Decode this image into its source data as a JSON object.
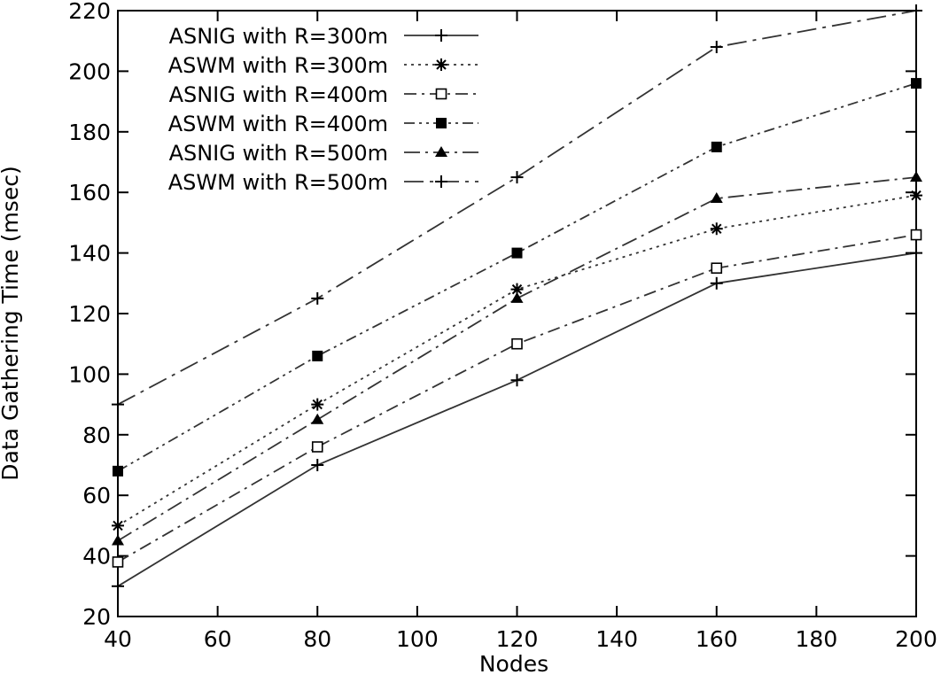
{
  "chart_data": {
    "type": "line",
    "title": "",
    "xlabel": "Nodes",
    "ylabel": "Data Gathering Time (msec)",
    "x": [
      40,
      80,
      120,
      160,
      200
    ],
    "xlim": [
      40,
      200
    ],
    "ylim": [
      20,
      220
    ],
    "xticks": [
      40,
      60,
      80,
      100,
      120,
      140,
      160,
      180,
      200
    ],
    "yticks": [
      20,
      40,
      60,
      80,
      100,
      120,
      140,
      160,
      180,
      200,
      220
    ],
    "grid": false,
    "legend_position": "top-left",
    "series": [
      {
        "name": "ASNIG with R=300m",
        "values": [
          30,
          70,
          98,
          130,
          140
        ],
        "line_style": "solid",
        "marker": "plus"
      },
      {
        "name": "ASWM with R=300m",
        "values": [
          50,
          90,
          128,
          148,
          159
        ],
        "line_style": "dotted",
        "marker": "star"
      },
      {
        "name": "ASNIG with R=400m",
        "values": [
          38,
          76,
          110,
          135,
          146
        ],
        "line_style": "dash-dot",
        "marker": "open-square"
      },
      {
        "name": "ASWM with R=400m",
        "values": [
          68,
          106,
          140,
          175,
          196
        ],
        "line_style": "dash-dot-dot",
        "marker": "filled-square"
      },
      {
        "name": "ASNIG with R=500m",
        "values": [
          45,
          85,
          125,
          158,
          165
        ],
        "line_style": "long-dash-dot",
        "marker": "filled-triangle"
      },
      {
        "name": "ASWM with R=500m",
        "values": [
          90,
          125,
          165,
          208,
          220
        ],
        "line_style": "dash-dot-long",
        "marker": "plus"
      }
    ]
  }
}
